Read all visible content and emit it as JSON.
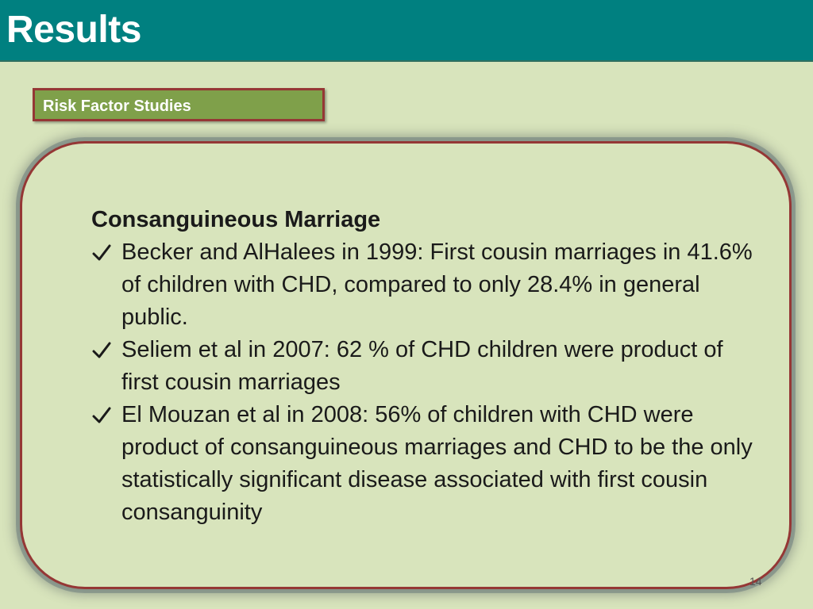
{
  "header": {
    "title": "Results"
  },
  "section_tag": {
    "label": "Risk Factor Studies"
  },
  "content": {
    "heading": "Consanguineous Marriage",
    "bullets": [
      {
        "icon": "check-icon",
        "text": "Becker and AlHalees in 1999: First cousin marriages in 41.6% of children with CHD, compared to only 28.4% in general public."
      },
      {
        "icon": "check-icon",
        "text": "Seliem et al in 2007: 62 % of CHD children were product of first cousin marriages"
      },
      {
        "icon": "check-icon",
        "text": "El Mouzan et al in 2008: 56% of children with CHD were product of consanguineous marriages and CHD to be the only statistically significant disease associated with first cousin consanguinity"
      }
    ]
  },
  "footer": {
    "page_number": "14"
  },
  "colors": {
    "header_bg": "#008080",
    "slide_bg": "#d8e4bc",
    "tag_bg": "#7fa04a",
    "border_accent": "#953735"
  }
}
